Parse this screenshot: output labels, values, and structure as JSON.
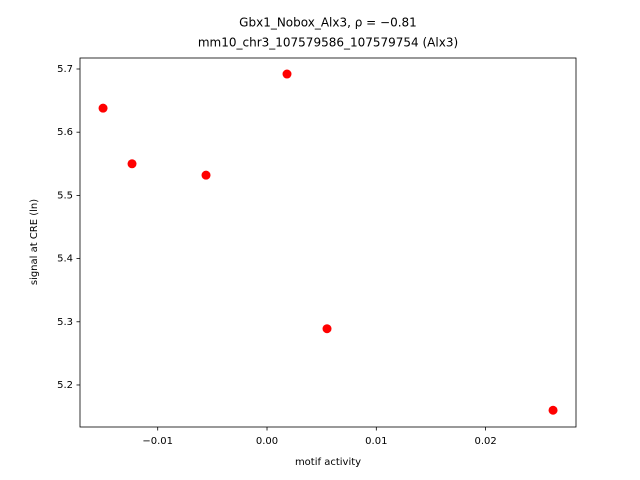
{
  "chart_data": {
    "type": "scatter",
    "title": "Gbx1_Nobox_Alx3, ρ = −0.81",
    "subtitle": "mm10_chr3_107579586_107579754 (Alx3)",
    "x_label": "motif activity",
    "y_label": "signal at CRE (ln)",
    "x": [
      -0.015,
      -0.01235,
      -0.00558,
      0.00183,
      0.00549,
      0.02617
    ],
    "values": [
      5.638,
      5.55,
      5.532,
      5.692,
      5.289,
      5.16
    ],
    "color": "#ff0000",
    "xlim": [
      -0.01711,
      0.02827
    ],
    "ylim": [
      5.1335,
      5.7174
    ],
    "xticks": [
      {
        "value": -0.01,
        "label": "−0.01"
      },
      {
        "value": 0,
        "label": "0.00"
      },
      {
        "value": 0.01,
        "label": "0.01"
      },
      {
        "value": 0.02,
        "label": "0.02"
      }
    ],
    "yticks": [
      5.2,
      5.3,
      5.4,
      5.5,
      5.6,
      5.7
    ],
    "grid": false
  }
}
